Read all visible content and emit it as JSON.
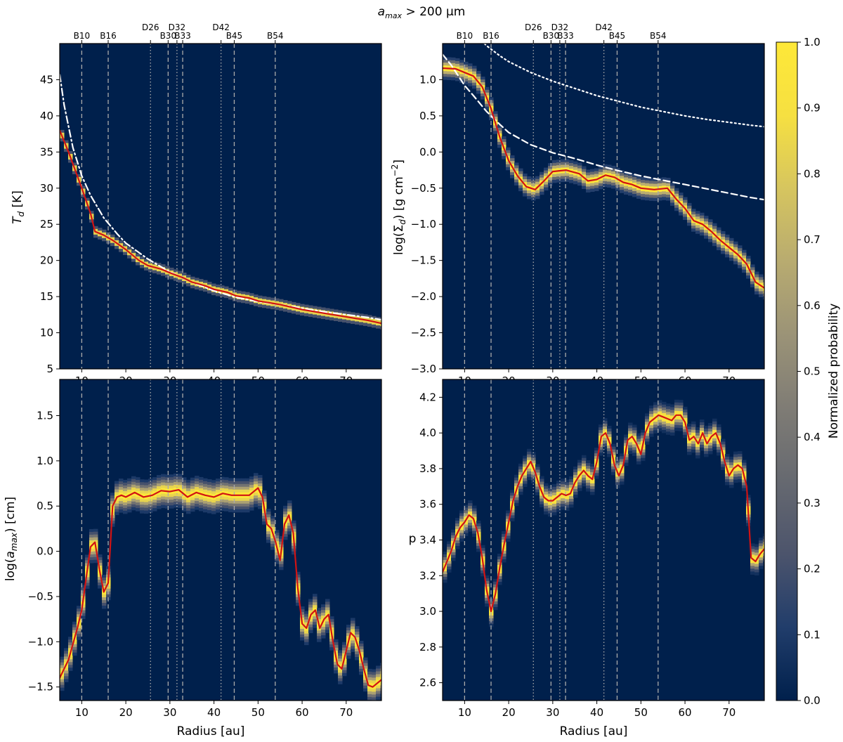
{
  "figure": {
    "title": "a_max > 200 μm",
    "title_main": "a",
    "title_sub": "max",
    "title_rest": " > 200 μm"
  },
  "colorbar": {
    "label": "Normalized probability",
    "ticks": [
      "0.0",
      "0.1",
      "0.2",
      "0.3",
      "0.4",
      "0.5",
      "0.6",
      "0.7",
      "0.8",
      "0.9",
      "1.0"
    ],
    "range": [
      0,
      1
    ],
    "colors": [
      "#00204c",
      "#213d6b",
      "#4c546c",
      "#666970",
      "#7f7c75",
      "#9b9377",
      "#b8ab70",
      "#d6c55f",
      "#f6e041",
      "#fee838"
    ]
  },
  "rings": [
    {
      "name": "B10",
      "r": 10.0,
      "style": "dashed"
    },
    {
      "name": "B16",
      "r": 16.0,
      "style": "dashed"
    },
    {
      "name": "D26",
      "r": 25.6,
      "style": "dotted"
    },
    {
      "name": "B30",
      "r": 29.6,
      "style": "dashed"
    },
    {
      "name": "D32",
      "r": 31.6,
      "style": "dotted"
    },
    {
      "name": "B33",
      "r": 32.9,
      "style": "dashed"
    },
    {
      "name": "D42",
      "r": 41.6,
      "style": "dotted"
    },
    {
      "name": "B45",
      "r": 44.6,
      "style": "dashed"
    },
    {
      "name": "B54",
      "r": 53.9,
      "style": "dashed"
    }
  ],
  "chart_data": [
    {
      "id": "temperature",
      "type": "heatmap",
      "xlabel": "",
      "ylabel": "T_d [K]",
      "xlim": [
        5,
        78
      ],
      "ylim": [
        5,
        50
      ],
      "xticks": [
        "10",
        "20",
        "30",
        "40",
        "50",
        "60",
        "70"
      ],
      "yticks": [
        "5",
        "10",
        "15",
        "20",
        "25",
        "30",
        "35",
        "40",
        "45"
      ],
      "median": {
        "name": "median T_d",
        "x": [
          5,
          7,
          10,
          12,
          13,
          15,
          17,
          20,
          23,
          25,
          28,
          30,
          33,
          35,
          38,
          40,
          43,
          45,
          48,
          50,
          55,
          60,
          65,
          70,
          75,
          78
        ],
        "y": [
          38,
          35,
          30,
          26.5,
          24,
          23.5,
          22.8,
          21.5,
          20,
          19.3,
          18.8,
          18.3,
          17.6,
          17,
          16.5,
          16,
          15.6,
          15.1,
          14.8,
          14.4,
          13.9,
          13.2,
          12.7,
          12.2,
          11.7,
          11.3
        ]
      },
      "model": {
        "name": "model T_d",
        "style": "dash-dot",
        "x": [
          5,
          6,
          8,
          10,
          12,
          15,
          18,
          20,
          25,
          30,
          35,
          40,
          45,
          50,
          55,
          60,
          65,
          70,
          75,
          78
        ],
        "y": [
          45.7,
          41.5,
          35.6,
          31.7,
          29,
          25.9,
          23.7,
          22.4,
          20.2,
          18.4,
          17,
          15.8,
          14.9,
          14.3,
          13.9,
          13.4,
          12.9,
          12.5,
          12.1,
          11.8
        ]
      }
    },
    {
      "id": "surface_density",
      "type": "heatmap",
      "xlabel": "",
      "ylabel": "log(Σ_d) [g cm^-2]",
      "xlim": [
        5,
        78
      ],
      "ylim": [
        -3.0,
        1.5
      ],
      "xticks": [
        "10",
        "20",
        "30",
        "40",
        "50",
        "60",
        "70"
      ],
      "yticks": [
        "−3.0",
        "−2.5",
        "−2.0",
        "−1.5",
        "−1.0",
        "−0.5",
        "0.0",
        "0.5",
        "1.0"
      ],
      "median": {
        "name": "median log Σ_d",
        "x": [
          5,
          8,
          10,
          12,
          14,
          16,
          18,
          20,
          22,
          24,
          26,
          28,
          30,
          33,
          36,
          38,
          40,
          42,
          44,
          46,
          48,
          50,
          53,
          56,
          58,
          60,
          62,
          64,
          66,
          68,
          70,
          72,
          74,
          76,
          78
        ],
        "y": [
          1.16,
          1.15,
          1.1,
          1.05,
          0.9,
          0.6,
          0.2,
          -0.12,
          -0.33,
          -0.48,
          -0.52,
          -0.4,
          -0.27,
          -0.25,
          -0.3,
          -0.4,
          -0.38,
          -0.32,
          -0.35,
          -0.42,
          -0.45,
          -0.5,
          -0.52,
          -0.5,
          -0.65,
          -0.78,
          -0.95,
          -1.0,
          -1.1,
          -1.22,
          -1.32,
          -1.42,
          -1.55,
          -1.8,
          -1.88
        ]
      },
      "model_dashed": {
        "name": "model log Σ_d (dashed)",
        "style": "dashed",
        "x": [
          5,
          7,
          10,
          12,
          15,
          18,
          20,
          25,
          30,
          35,
          40,
          45,
          50,
          55,
          60,
          65,
          70,
          75,
          78
        ],
        "y": [
          1.35,
          1.2,
          0.92,
          0.78,
          0.56,
          0.38,
          0.27,
          0.1,
          -0.01,
          -0.09,
          -0.18,
          -0.26,
          -0.33,
          -0.39,
          -0.45,
          -0.51,
          -0.57,
          -0.63,
          -0.66
        ]
      },
      "model_dotted": {
        "name": "model log Σ_d (dotted)",
        "style": "dotted",
        "x": [
          10,
          12,
          15,
          18,
          20,
          25,
          30,
          35,
          40,
          45,
          50,
          55,
          60,
          65,
          70,
          75,
          78
        ],
        "y": [
          1.8,
          1.65,
          1.47,
          1.33,
          1.25,
          1.1,
          0.98,
          0.88,
          0.78,
          0.7,
          0.62,
          0.56,
          0.5,
          0.45,
          0.41,
          0.37,
          0.35
        ]
      }
    },
    {
      "id": "max_grain_size",
      "type": "heatmap",
      "xlabel": "Radius [au]",
      "ylabel": "log(a_max) [cm]",
      "xlim": [
        5,
        78
      ],
      "ylim": [
        -1.65,
        1.9
      ],
      "xticks": [
        "10",
        "20",
        "30",
        "40",
        "50",
        "60",
        "70"
      ],
      "yticks": [
        "−1.5",
        "−1.0",
        "−0.5",
        "0.0",
        "0.5",
        "1.0",
        "1.5"
      ],
      "median": {
        "name": "median log a_max",
        "x": [
          5,
          7,
          9,
          10,
          11,
          12,
          13,
          14,
          15,
          16,
          17,
          18,
          19,
          20,
          22,
          24,
          26,
          28,
          30,
          32,
          34,
          36,
          38,
          40,
          42,
          44,
          46,
          48,
          50,
          51,
          52,
          53,
          54,
          55,
          56,
          57,
          58,
          59,
          60,
          61,
          62,
          63,
          64,
          65,
          66,
          67,
          68,
          69,
          70,
          71,
          72,
          73,
          74,
          75,
          76,
          78
        ],
        "y": [
          -1.4,
          -1.2,
          -0.85,
          -0.65,
          -0.3,
          0.05,
          0.1,
          -0.2,
          -0.45,
          -0.35,
          0.5,
          0.6,
          0.62,
          0.6,
          0.65,
          0.6,
          0.62,
          0.67,
          0.66,
          0.68,
          0.6,
          0.65,
          0.62,
          0.6,
          0.64,
          0.62,
          0.62,
          0.62,
          0.7,
          0.6,
          0.3,
          0.25,
          0.1,
          -0.1,
          0.3,
          0.4,
          0.2,
          -0.4,
          -0.8,
          -0.85,
          -0.7,
          -0.65,
          -0.85,
          -0.75,
          -0.7,
          -1.0,
          -1.25,
          -1.3,
          -1.1,
          -0.9,
          -0.95,
          -1.1,
          -1.3,
          -1.48,
          -1.5,
          -1.42
        ]
      }
    },
    {
      "id": "size_slope",
      "type": "heatmap",
      "xlabel": "Radius [au]",
      "ylabel": "p",
      "xlim": [
        5,
        78
      ],
      "ylim": [
        2.5,
        4.3
      ],
      "xticks": [
        "10",
        "20",
        "30",
        "40",
        "50",
        "60",
        "70"
      ],
      "yticks": [
        "2.6",
        "2.8",
        "3.0",
        "3.2",
        "3.4",
        "3.6",
        "3.8",
        "4.0",
        "4.2"
      ],
      "median": {
        "name": "median p",
        "x": [
          5,
          6,
          7,
          8,
          9,
          10,
          11,
          12,
          13,
          14,
          15,
          16,
          17,
          18,
          19,
          20,
          21,
          22,
          23,
          24,
          25,
          26,
          27,
          28,
          29,
          30,
          31,
          32,
          33,
          34,
          35,
          36,
          37,
          38,
          39,
          40,
          41,
          42,
          43,
          44,
          45,
          46,
          47,
          48,
          49,
          50,
          51,
          52,
          53,
          54,
          55,
          56,
          57,
          58,
          59,
          60,
          61,
          62,
          63,
          64,
          65,
          66,
          67,
          68,
          69,
          70,
          71,
          72,
          73,
          74,
          75,
          76,
          77,
          78
        ],
        "y": [
          3.22,
          3.28,
          3.34,
          3.42,
          3.47,
          3.5,
          3.54,
          3.52,
          3.44,
          3.3,
          3.12,
          3.0,
          3.1,
          3.25,
          3.38,
          3.5,
          3.62,
          3.7,
          3.76,
          3.8,
          3.84,
          3.78,
          3.7,
          3.64,
          3.62,
          3.62,
          3.64,
          3.66,
          3.65,
          3.66,
          3.72,
          3.76,
          3.79,
          3.76,
          3.74,
          3.84,
          3.98,
          4.0,
          3.94,
          3.82,
          3.76,
          3.82,
          3.96,
          3.98,
          3.94,
          3.88,
          4.0,
          4.06,
          4.08,
          4.1,
          4.09,
          4.08,
          4.07,
          4.1,
          4.1,
          4.06,
          3.96,
          3.98,
          3.94,
          4.0,
          3.94,
          3.98,
          4.0,
          3.94,
          3.84,
          3.76,
          3.8,
          3.82,
          3.8,
          3.7,
          3.3,
          3.28,
          3.32,
          3.35
        ]
      }
    }
  ]
}
